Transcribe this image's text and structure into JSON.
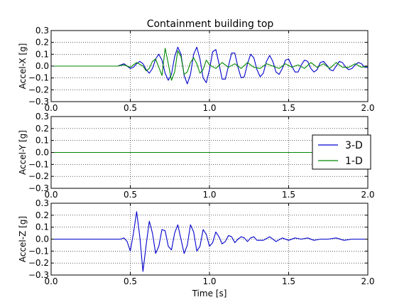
{
  "figure_title": "Containment building top",
  "chart_data": [
    {
      "type": "line",
      "title": "Containment building top",
      "ylabel": "Accel-X [g]",
      "xlabel": "",
      "xlim": [
        0.0,
        2.0
      ],
      "ylim": [
        -0.3,
        0.3
      ],
      "xticks": [
        "0.0",
        "0.5",
        "1.0",
        "1.5",
        "2.0"
      ],
      "yticks": [
        "0.3",
        "0.2",
        "0.1",
        "0.0",
        "−0.1",
        "−0.2",
        "−0.3"
      ],
      "grid": true,
      "series": [
        {
          "name": "3-D",
          "color": "#0000cc",
          "x": [
            0.0,
            0.42,
            0.44,
            0.46,
            0.48,
            0.5,
            0.52,
            0.54,
            0.56,
            0.58,
            0.6,
            0.62,
            0.64,
            0.66,
            0.68,
            0.7,
            0.72,
            0.74,
            0.76,
            0.78,
            0.8,
            0.82,
            0.84,
            0.86,
            0.88,
            0.9,
            0.92,
            0.94,
            0.96,
            0.98,
            1.0,
            1.02,
            1.04,
            1.06,
            1.08,
            1.1,
            1.12,
            1.14,
            1.16,
            1.18,
            1.2,
            1.22,
            1.24,
            1.26,
            1.28,
            1.3,
            1.32,
            1.34,
            1.36,
            1.38,
            1.4,
            1.42,
            1.44,
            1.46,
            1.48,
            1.5,
            1.52,
            1.54,
            1.56,
            1.58,
            1.6,
            1.62,
            1.64,
            1.66,
            1.68,
            1.7,
            1.72,
            1.74,
            1.76,
            1.78,
            1.8,
            1.82,
            1.84,
            1.86,
            1.88,
            1.9,
            1.92,
            1.94,
            1.96,
            1.98,
            2.0
          ],
          "y": [
            0.0,
            0.0,
            0.01,
            0.02,
            0.0,
            -0.02,
            -0.01,
            0.02,
            0.04,
            0.02,
            -0.03,
            -0.06,
            -0.02,
            0.06,
            0.1,
            0.05,
            -0.06,
            -0.12,
            -0.07,
            0.08,
            0.16,
            0.1,
            -0.08,
            -0.15,
            -0.07,
            0.1,
            0.16,
            0.06,
            -0.1,
            -0.14,
            -0.03,
            0.12,
            0.14,
            0.02,
            -0.11,
            -0.11,
            0.0,
            0.11,
            0.11,
            -0.01,
            -0.1,
            -0.09,
            0.02,
            0.1,
            0.07,
            -0.03,
            -0.09,
            -0.06,
            0.04,
            0.09,
            0.04,
            -0.05,
            -0.07,
            -0.02,
            0.05,
            0.06,
            0.0,
            -0.05,
            -0.05,
            0.01,
            0.05,
            0.04,
            -0.02,
            -0.05,
            -0.03,
            0.03,
            0.04,
            0.01,
            -0.03,
            -0.04,
            0.0,
            0.04,
            0.03,
            -0.01,
            -0.03,
            -0.02,
            0.01,
            0.03,
            0.02,
            -0.01,
            -0.01
          ]
        },
        {
          "name": "1-D",
          "color": "#008800",
          "x": [
            0.0,
            0.42,
            0.46,
            0.5,
            0.54,
            0.58,
            0.6,
            0.62,
            0.64,
            0.66,
            0.68,
            0.7,
            0.72,
            0.74,
            0.76,
            0.78,
            0.8,
            0.82,
            0.84,
            0.86,
            0.88,
            0.9,
            0.92,
            0.94,
            0.96,
            0.98,
            1.0,
            1.04,
            1.08,
            1.12,
            1.16,
            1.2,
            1.24,
            1.28,
            1.32,
            1.36,
            1.4,
            1.44,
            1.48,
            1.52,
            1.56,
            1.6,
            1.64,
            1.68,
            1.72,
            1.76,
            1.8,
            1.84,
            1.88,
            1.92,
            1.96,
            2.0
          ],
          "y": [
            0.0,
            0.0,
            0.01,
            -0.01,
            0.03,
            0.0,
            -0.04,
            -0.02,
            0.04,
            0.06,
            -0.01,
            -0.08,
            0.15,
            0.02,
            -0.12,
            -0.05,
            0.13,
            0.08,
            -0.07,
            -0.05,
            0.03,
            0.07,
            0.02,
            -0.06,
            -0.03,
            0.05,
            0.01,
            -0.02,
            0.03,
            -0.01,
            0.02,
            -0.02,
            0.03,
            -0.01,
            -0.02,
            0.02,
            0.0,
            -0.02,
            0.02,
            -0.01,
            0.01,
            -0.02,
            0.03,
            -0.01,
            0.02,
            -0.02,
            0.03,
            -0.01,
            -0.01,
            0.02,
            -0.01,
            0.0
          ]
        }
      ]
    },
    {
      "type": "line",
      "title": "",
      "ylabel": "Accel-Y [g]",
      "xlabel": "",
      "xlim": [
        0.0,
        2.0
      ],
      "ylim": [
        -0.3,
        0.3
      ],
      "xticks": [
        "0.0",
        "0.5",
        "1.0",
        "1.5",
        "2.0"
      ],
      "yticks": [
        "0.3",
        "0.2",
        "0.1",
        "0.0",
        "−0.1",
        "−0.2",
        "−0.3"
      ],
      "grid": true,
      "legend": {
        "placement": "right",
        "entries": [
          {
            "label": "3-D",
            "color": "#0000cc"
          },
          {
            "label": "1-D",
            "color": "#008800"
          }
        ]
      },
      "series": [
        {
          "name": "3-D",
          "color": "#0000cc",
          "x": [
            0.0,
            2.0
          ],
          "y": [
            0.0,
            0.0
          ]
        },
        {
          "name": "1-D",
          "color": "#008800",
          "x": [
            0.0,
            2.0
          ],
          "y": [
            0.0,
            0.0
          ]
        }
      ]
    },
    {
      "type": "line",
      "title": "",
      "ylabel": "Accel-Z [g]",
      "xlabel": "Time [s]",
      "xlim": [
        0.0,
        2.0
      ],
      "ylim": [
        -0.3,
        0.3
      ],
      "xticks": [
        "0.0",
        "0.5",
        "1.0",
        "1.5",
        "2.0"
      ],
      "yticks": [
        "0.3",
        "0.2",
        "0.1",
        "0.0",
        "−0.1",
        "−0.2",
        "−0.3"
      ],
      "grid": true,
      "series": [
        {
          "name": "3-D",
          "color": "#0000cc",
          "x": [
            0.0,
            0.42,
            0.44,
            0.46,
            0.48,
            0.5,
            0.52,
            0.54,
            0.56,
            0.58,
            0.6,
            0.62,
            0.64,
            0.66,
            0.68,
            0.7,
            0.72,
            0.74,
            0.76,
            0.78,
            0.8,
            0.82,
            0.84,
            0.86,
            0.88,
            0.9,
            0.92,
            0.94,
            0.96,
            0.98,
            1.0,
            1.02,
            1.04,
            1.06,
            1.08,
            1.1,
            1.12,
            1.14,
            1.16,
            1.18,
            1.2,
            1.22,
            1.24,
            1.26,
            1.28,
            1.3,
            1.34,
            1.38,
            1.42,
            1.46,
            1.5,
            1.54,
            1.58,
            1.62,
            1.66,
            1.7,
            1.75,
            1.8,
            1.85,
            1.9,
            1.95,
            2.0
          ],
          "y": [
            0.0,
            0.0,
            0.0,
            0.01,
            -0.02,
            -0.1,
            0.05,
            0.23,
            0.02,
            -0.27,
            -0.05,
            0.15,
            0.05,
            -0.12,
            -0.06,
            0.08,
            0.07,
            -0.06,
            -0.09,
            0.05,
            0.12,
            0.0,
            -0.12,
            -0.05,
            0.12,
            0.06,
            -0.1,
            -0.06,
            0.08,
            0.04,
            -0.06,
            -0.03,
            0.06,
            0.02,
            -0.04,
            -0.02,
            0.03,
            0.02,
            -0.03,
            0.0,
            0.02,
            0.01,
            -0.02,
            0.01,
            0.02,
            -0.01,
            -0.01,
            0.02,
            -0.02,
            0.01,
            -0.01,
            0.01,
            0.0,
            0.01,
            -0.01,
            0.0,
            0.0,
            0.01,
            -0.01,
            0.0,
            0.0,
            0.0
          ]
        }
      ]
    }
  ]
}
